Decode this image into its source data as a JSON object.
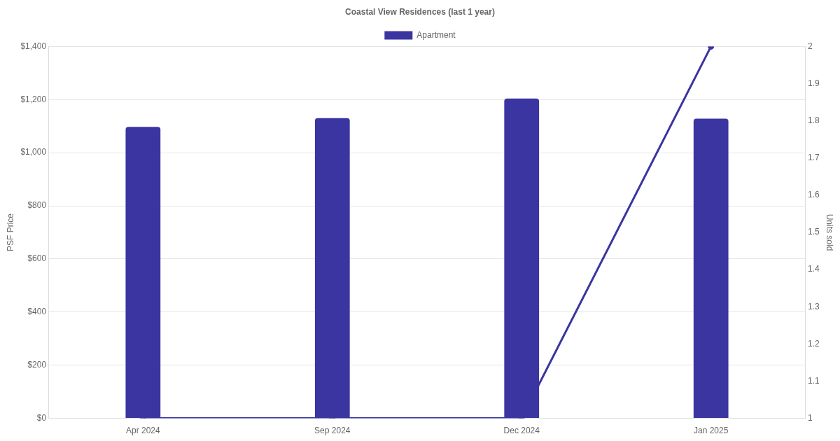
{
  "chart_data": {
    "type": "bar",
    "title": "Coastal View Residences (last 1 year)",
    "ylabel": "PSF Price",
    "y2label": "Units sold",
    "categories": [
      "Apr 2024",
      "Sep 2024",
      "Dec 2024",
      "Jan 2025"
    ],
    "series": [
      {
        "name": "Apartment",
        "color": "#3a35a0",
        "values": [
          1097,
          1130,
          1204,
          1128
        ]
      },
      {
        "type": "line",
        "axis": "y2",
        "color": "#3a35a0",
        "values": [
          1,
          1,
          1,
          2
        ]
      }
    ],
    "ylim": [
      0,
      1400
    ],
    "yticks": [
      {
        "value": 0,
        "label": "$0"
      },
      {
        "value": 200,
        "label": "$200"
      },
      {
        "value": 400,
        "label": "$400"
      },
      {
        "value": 600,
        "label": "$600"
      },
      {
        "value": 800,
        "label": "$800"
      },
      {
        "value": 1000,
        "label": "$1,000"
      },
      {
        "value": 1200,
        "label": "$1,200"
      },
      {
        "value": 1400,
        "label": "$1,400"
      }
    ],
    "y2lim": [
      1,
      2
    ],
    "y2ticks": [
      1,
      1.1,
      1.2,
      1.3,
      1.4,
      1.5,
      1.6,
      1.7,
      1.8,
      1.9,
      2
    ],
    "grid": "y",
    "legend": "top",
    "marker": "circle",
    "line_style": "solid"
  }
}
